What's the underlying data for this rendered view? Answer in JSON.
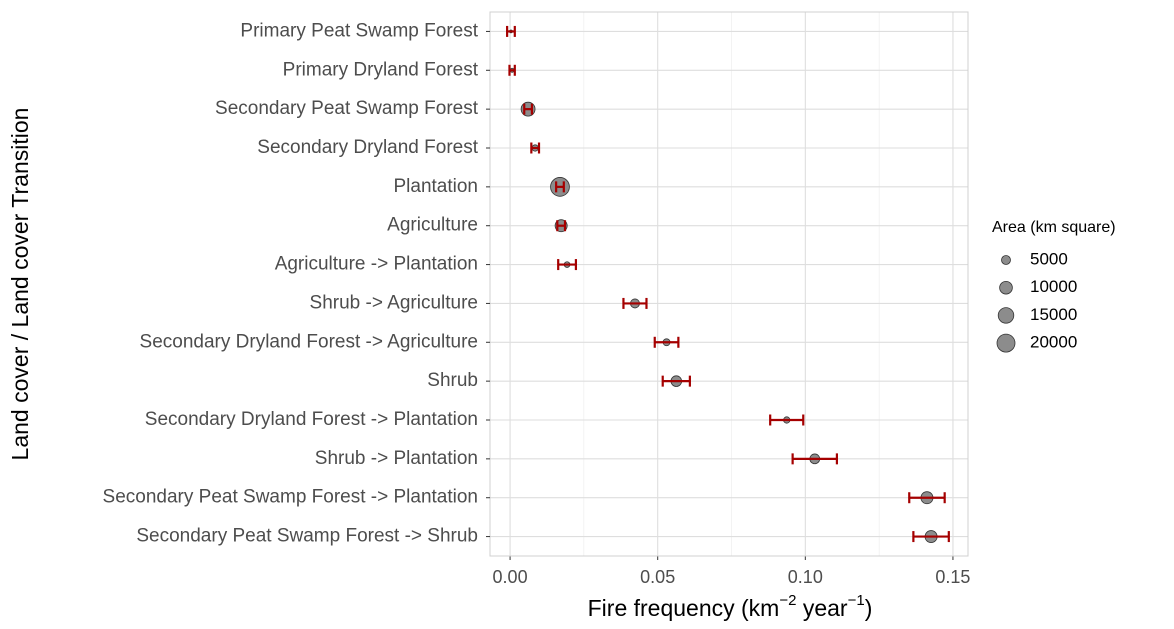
{
  "chart_data": {
    "type": "dot",
    "xlabel": [
      "Fire frequency (km",
      "−2",
      " year",
      "−1",
      ")"
    ],
    "ylabel": "Land cover / Land cover Transition",
    "categories": [
      "Primary Peat Swamp Forest",
      "Primary Dryland Forest",
      "Secondary Peat Swamp Forest",
      "Secondary Dryland Forest",
      "Plantation",
      "Agriculture",
      "Agriculture -> Plantation",
      "Shrub -> Agriculture",
      "Secondary Dryland Forest -> Agriculture",
      "Shrub",
      "Secondary Dryland Forest -> Plantation",
      "Shrub -> Plantation",
      "Secondary Peat Swamp Forest -> Plantation",
      "Secondary Peat Swamp Forest -> Shrub"
    ],
    "values": [
      0.0003,
      0.0007,
      0.0061,
      0.0085,
      0.0169,
      0.0173,
      0.0193,
      0.0423,
      0.053,
      0.0563,
      0.0937,
      0.1032,
      0.1412,
      0.1426
    ],
    "errors": [
      0.0013,
      0.0009,
      0.0013,
      0.0013,
      0.0013,
      0.0013,
      0.003,
      0.0039,
      0.004,
      0.0046,
      0.0056,
      0.0075,
      0.006,
      0.006
    ],
    "sizes": [
      500,
      1000,
      12000,
      2500,
      22000,
      9000,
      2000,
      5000,
      3000,
      7000,
      2500,
      6000,
      9000,
      9000
    ],
    "color": "#7f7f7f",
    "error_color": "#a50000",
    "xlim": [
      -0.0068,
      0.1551
    ],
    "xticks": [
      {
        "value": 0,
        "label": "0.00"
      },
      0.05,
      {
        "value": 0.1,
        "label": "0.10"
      },
      0.15
    ],
    "grid": true,
    "size_legend_title": "Area (km square)",
    "size_legend": [
      5000,
      10000,
      15000,
      20000
    ],
    "legend": "right"
  }
}
